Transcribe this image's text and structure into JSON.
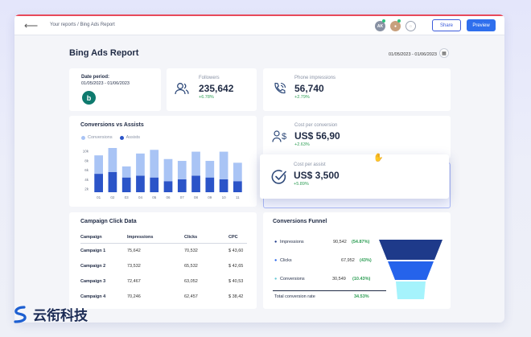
{
  "breadcrumb": "Your reports / Bing Ads Report",
  "header": {
    "share": "Share",
    "preview": "Preview",
    "avatar_initials": "AK"
  },
  "report": {
    "title": "Bing Ads Report",
    "date_range": "01/05/2023 - 01/06/2023"
  },
  "date_card": {
    "label": "Date period:",
    "value": "01/05/2023 - 01/06/2023"
  },
  "followers": {
    "label": "Followers",
    "value": "235,642",
    "change": "+6.78%"
  },
  "phone": {
    "label": "Phone impressions",
    "value": "56,740",
    "change": "+2.79%"
  },
  "cost_conv": {
    "label": "Cost per conversion",
    "value": "US$ 56,90",
    "change": "+2.63%"
  },
  "cost_assist": {
    "label": "Cost per assist",
    "value": "US$ 3,500",
    "change": "+5.89%"
  },
  "chart_title": "Conversions vs Assists",
  "chart_data": {
    "type": "bar",
    "stacked": true,
    "categories": [
      "01",
      "02",
      "03",
      "04",
      "05",
      "06",
      "07",
      "08",
      "09",
      "10",
      "11"
    ],
    "series": [
      {
        "name": "Conversions",
        "values": [
          5,
          6.5,
          3,
          6,
          7.5,
          6,
          5,
          6.5,
          4.5,
          7.5,
          5
        ],
        "color": "#a9c4f5"
      },
      {
        "name": "Assists",
        "values": [
          5,
          5.5,
          4,
          4.5,
          4,
          3,
          3.5,
          4.5,
          4,
          3.5,
          3
        ],
        "color": "#2b54c8"
      }
    ],
    "yticks": [
      "10k",
      "8k",
      "6k",
      "4k",
      "2k"
    ],
    "ylim": [
      0,
      12
    ],
    "legend": "top-left"
  },
  "click_table": {
    "title": "Campaign Click Data",
    "columns": [
      "Campaign",
      "Impressions",
      "Clicks",
      "CPC"
    ],
    "rows": [
      [
        "Campaign 1",
        "75,642",
        "70,532",
        "$ 43,60"
      ],
      [
        "Campaign 2",
        "73,532",
        "65,532",
        "$ 42,65"
      ],
      [
        "Campaign 3",
        "72,467",
        "63,052",
        "$ 40,53"
      ],
      [
        "Campaign 4",
        "70,246",
        "62,457",
        "$ 38,42"
      ]
    ]
  },
  "funnel": {
    "title": "Conversions Funnel",
    "rows": [
      {
        "label": "Impressions",
        "value": "90,542",
        "pct": "(54.87%)",
        "color": "#1e3a8a"
      },
      {
        "label": "Clicks",
        "value": "67,952",
        "pct": "(43%)",
        "color": "#2563eb"
      },
      {
        "label": "Conversions",
        "value": "30,549",
        "pct": "(10.43%)",
        "color": "#a5f3fc"
      }
    ],
    "total_label": "Total conversion rate",
    "total_value": "34.53%"
  },
  "watermark": "云衔科技",
  "colors": {
    "accent": "#2f6fed",
    "positive": "#2e9e55"
  }
}
